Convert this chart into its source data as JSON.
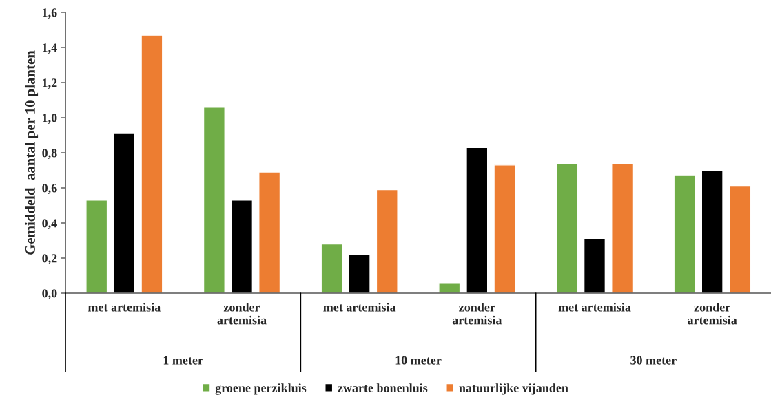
{
  "chart_data": {
    "type": "bar",
    "categories": [
      "met artemisia",
      "zonder\nartemisia",
      "met artemisia",
      "zonder\nartemisia",
      "met artemisia",
      "zonder\nartemisia"
    ],
    "series": [
      {
        "name": "groene perzikluis",
        "color": "#70ad47",
        "values": [
          0.53,
          1.06,
          0.28,
          0.06,
          0.74,
          0.67
        ]
      },
      {
        "name": "zwarte bonenluis",
        "color": "#000000",
        "values": [
          0.91,
          0.53,
          0.22,
          0.83,
          0.31,
          0.7
        ]
      },
      {
        "name": "natuurlijke vijanden",
        "color": "#ed7d31",
        "values": [
          1.47,
          0.69,
          0.59,
          0.73,
          0.74,
          0.61
        ]
      }
    ],
    "annotations": [
      "1 meter",
      "10 meter",
      "30 meter"
    ],
    "ylabel": "Gemiddeld  aantal per 10 planten",
    "ylim": [
      0,
      1.6
    ],
    "yticks": [
      {
        "value": 0,
        "label": "0,0"
      },
      {
        "value": 0.2,
        "label": "0,2"
      },
      {
        "value": 0.4,
        "label": "0,4"
      },
      {
        "value": 0.6,
        "label": "0,6"
      },
      {
        "value": 0.8,
        "label": "0,8"
      },
      {
        "value": 1.0,
        "label": "1,0"
      },
      {
        "value": 1.2,
        "label": "1,2"
      },
      {
        "value": 1.4,
        "label": "1,4"
      },
      {
        "value": 1.6,
        "label": "1,6"
      }
    ],
    "grid": false,
    "legend": "bottom"
  }
}
